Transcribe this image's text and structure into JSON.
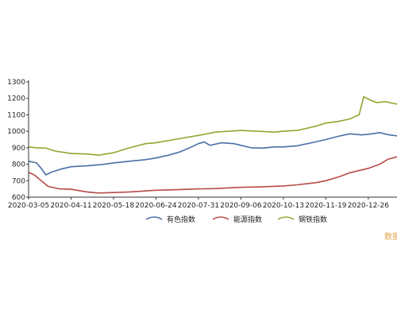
{
  "watermark": "数据",
  "chart_data": {
    "type": "line",
    "title": "",
    "xlabel": "",
    "ylabel": "",
    "ylim": [
      600,
      1300
    ],
    "yticks": [
      600,
      700,
      800,
      900,
      1000,
      1100,
      1200,
      1300
    ],
    "xrange": [
      "2020-03-05",
      "2021-01-20"
    ],
    "xticks": [
      "2020-03-05",
      "2020-04-11",
      "2020-05-18",
      "2020-06-24",
      "2020-07-31",
      "2020-09-06",
      "2020-10-13",
      "2020-11-19",
      "2020-12-26",
      "20"
    ],
    "grid": false,
    "legend": "bottom",
    "series": [
      {
        "name": "有色指数",
        "color": "#4a6fa5",
        "points": [
          [
            "2020-03-05",
            818
          ],
          [
            "2020-03-12",
            808
          ],
          [
            "2020-03-16",
            775
          ],
          [
            "2020-03-20",
            735
          ],
          [
            "2020-03-25",
            752
          ],
          [
            "2020-04-01",
            768
          ],
          [
            "2020-04-11",
            785
          ],
          [
            "2020-04-25",
            790
          ],
          [
            "2020-05-10",
            800
          ],
          [
            "2020-05-18",
            808
          ],
          [
            "2020-06-01",
            818
          ],
          [
            "2020-06-15",
            828
          ],
          [
            "2020-06-24",
            838
          ],
          [
            "2020-07-05",
            855
          ],
          [
            "2020-07-15",
            875
          ],
          [
            "2020-07-25",
            905
          ],
          [
            "2020-07-31",
            925
          ],
          [
            "2020-08-05",
            935
          ],
          [
            "2020-08-10",
            915
          ],
          [
            "2020-08-20",
            930
          ],
          [
            "2020-08-31",
            925
          ],
          [
            "2020-09-06",
            915
          ],
          [
            "2020-09-15",
            900
          ],
          [
            "2020-09-25",
            898
          ],
          [
            "2020-10-05",
            905
          ],
          [
            "2020-10-13",
            905
          ],
          [
            "2020-10-25",
            912
          ],
          [
            "2020-11-05",
            928
          ],
          [
            "2020-11-19",
            950
          ],
          [
            "2020-11-30",
            970
          ],
          [
            "2020-12-10",
            985
          ],
          [
            "2020-12-20",
            978
          ],
          [
            "2020-12-26",
            982
          ],
          [
            "2021-01-05",
            992
          ],
          [
            "2021-01-12",
            980
          ],
          [
            "2021-01-20",
            972
          ]
        ]
      },
      {
        "name": "能源指数",
        "color": "#b84a4a",
        "points": [
          [
            "2020-03-05",
            750
          ],
          [
            "2020-03-10",
            735
          ],
          [
            "2020-03-16",
            700
          ],
          [
            "2020-03-22",
            665
          ],
          [
            "2020-04-01",
            650
          ],
          [
            "2020-04-11",
            648
          ],
          [
            "2020-04-25",
            632
          ],
          [
            "2020-05-05",
            625
          ],
          [
            "2020-05-18",
            628
          ],
          [
            "2020-06-01",
            632
          ],
          [
            "2020-06-24",
            642
          ],
          [
            "2020-07-10",
            645
          ],
          [
            "2020-07-31",
            650
          ],
          [
            "2020-08-15",
            652
          ],
          [
            "2020-09-06",
            660
          ],
          [
            "2020-09-20",
            662
          ],
          [
            "2020-10-13",
            668
          ],
          [
            "2020-10-25",
            675
          ],
          [
            "2020-11-10",
            688
          ],
          [
            "2020-11-19",
            700
          ],
          [
            "2020-12-01",
            725
          ],
          [
            "2020-12-10",
            748
          ],
          [
            "2020-12-20",
            765
          ],
          [
            "2020-12-26",
            775
          ],
          [
            "2021-01-05",
            800
          ],
          [
            "2021-01-12",
            830
          ],
          [
            "2021-01-20",
            845
          ]
        ]
      },
      {
        "name": "钢铁指数",
        "color": "#8fa832",
        "points": [
          [
            "2020-03-05",
            905
          ],
          [
            "2020-03-12",
            900
          ],
          [
            "2020-03-20",
            898
          ],
          [
            "2020-03-28",
            880
          ],
          [
            "2020-04-11",
            865
          ],
          [
            "2020-04-25",
            862
          ],
          [
            "2020-05-05",
            855
          ],
          [
            "2020-05-18",
            870
          ],
          [
            "2020-06-01",
            900
          ],
          [
            "2020-06-15",
            925
          ],
          [
            "2020-06-24",
            930
          ],
          [
            "2020-07-10",
            950
          ],
          [
            "2020-07-31",
            975
          ],
          [
            "2020-08-15",
            995
          ],
          [
            "2020-09-06",
            1005
          ],
          [
            "2020-09-20",
            1000
          ],
          [
            "2020-10-05",
            995
          ],
          [
            "2020-10-13",
            1000
          ],
          [
            "2020-10-25",
            1005
          ],
          [
            "2020-11-10",
            1030
          ],
          [
            "2020-11-19",
            1050
          ],
          [
            "2020-11-30",
            1060
          ],
          [
            "2020-12-10",
            1075
          ],
          [
            "2020-12-18",
            1100
          ],
          [
            "2020-12-22",
            1210
          ],
          [
            "2020-12-26",
            1195
          ],
          [
            "2021-01-02",
            1175
          ],
          [
            "2021-01-10",
            1180
          ],
          [
            "2021-01-16",
            1170
          ],
          [
            "2021-01-20",
            1165
          ]
        ]
      }
    ]
  }
}
